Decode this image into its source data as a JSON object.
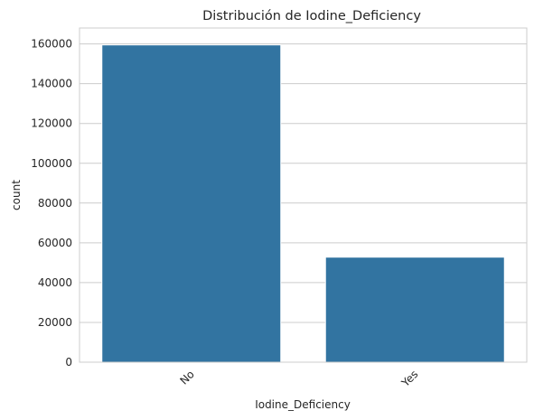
{
  "chart_data": {
    "type": "bar",
    "title": "Distribución de Iodine_Deficiency",
    "xlabel": "Iodine_Deficiency",
    "ylabel": "count",
    "categories": [
      "No",
      "Yes"
    ],
    "values": [
      159500,
      52800
    ],
    "ylim": [
      0,
      168000
    ],
    "yticks": [
      0,
      20000,
      40000,
      60000,
      80000,
      100000,
      120000,
      140000,
      160000
    ],
    "grid": true,
    "bar_color": "#3274a1",
    "xtick_rotation_deg": 45
  }
}
